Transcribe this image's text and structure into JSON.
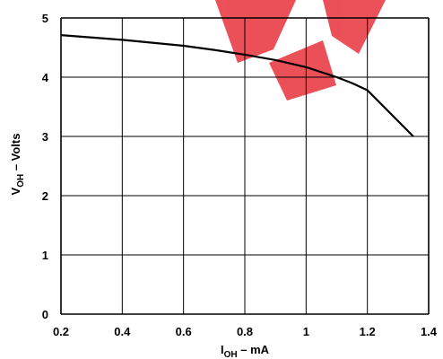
{
  "chart_data": {
    "type": "line",
    "xlabel": {
      "main": "I",
      "sub": "OH",
      "rest": " – mA"
    },
    "ylabel": {
      "main": "V",
      "sub": "OH",
      "rest": " – Volts"
    },
    "xlim": [
      0.2,
      1.4
    ],
    "ylim": [
      0,
      5
    ],
    "x_ticks": [
      "0.2",
      "0.4",
      "0.6",
      "0.8",
      "1",
      "1.2",
      "1.4"
    ],
    "y_ticks": [
      "0",
      "1",
      "2",
      "3",
      "4",
      "5"
    ],
    "grid": true,
    "series": [
      {
        "x": [
          0.2,
          0.4,
          0.6,
          0.7,
          0.8,
          0.9,
          1.0,
          1.1,
          1.15,
          1.2,
          1.35
        ],
        "y": [
          4.71,
          4.63,
          4.53,
          4.46,
          4.38,
          4.29,
          4.17,
          4.0,
          3.9,
          3.78,
          3.0
        ]
      }
    ],
    "colors": {
      "line": "#000000",
      "grid": "#000000",
      "watermark": "#e8323c"
    }
  }
}
